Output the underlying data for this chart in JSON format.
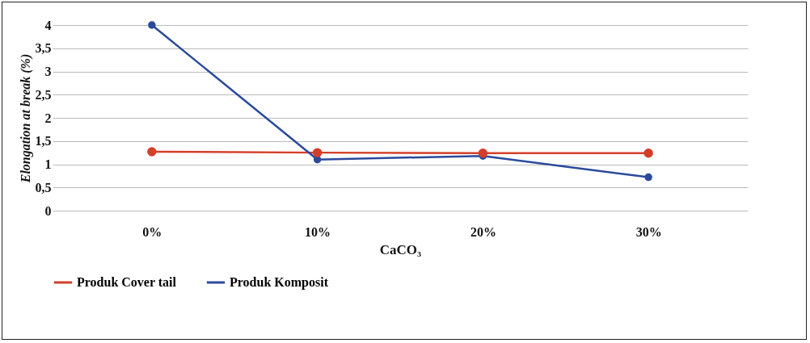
{
  "chart_data": {
    "type": "line",
    "xlabel": "CaCO₃",
    "ylabel": "Elongation at break (%)",
    "categories": [
      "0%",
      "10%",
      "20%",
      "30%"
    ],
    "series": [
      {
        "name": "Produk Cover tail",
        "color": "#d43f2a",
        "values": [
          1.27,
          1.25,
          1.24,
          1.24
        ]
      },
      {
        "name": "Produk Komposit",
        "color": "#2b4a9c",
        "values": [
          4,
          1.1,
          1.18,
          0.72
        ]
      }
    ],
    "ylim": [
      0,
      4
    ],
    "yticks": [
      0,
      {
        "value": 0.5,
        "label": "0,5"
      },
      1,
      {
        "value": 1.5,
        "label": "1,5"
      },
      2,
      {
        "value": 2.5,
        "label": "2,5"
      },
      3,
      {
        "value": 3.5,
        "label": "3,5"
      },
      4
    ],
    "grid": "y",
    "legend": "bottom",
    "marker": "circle",
    "line_style": "solid"
  }
}
